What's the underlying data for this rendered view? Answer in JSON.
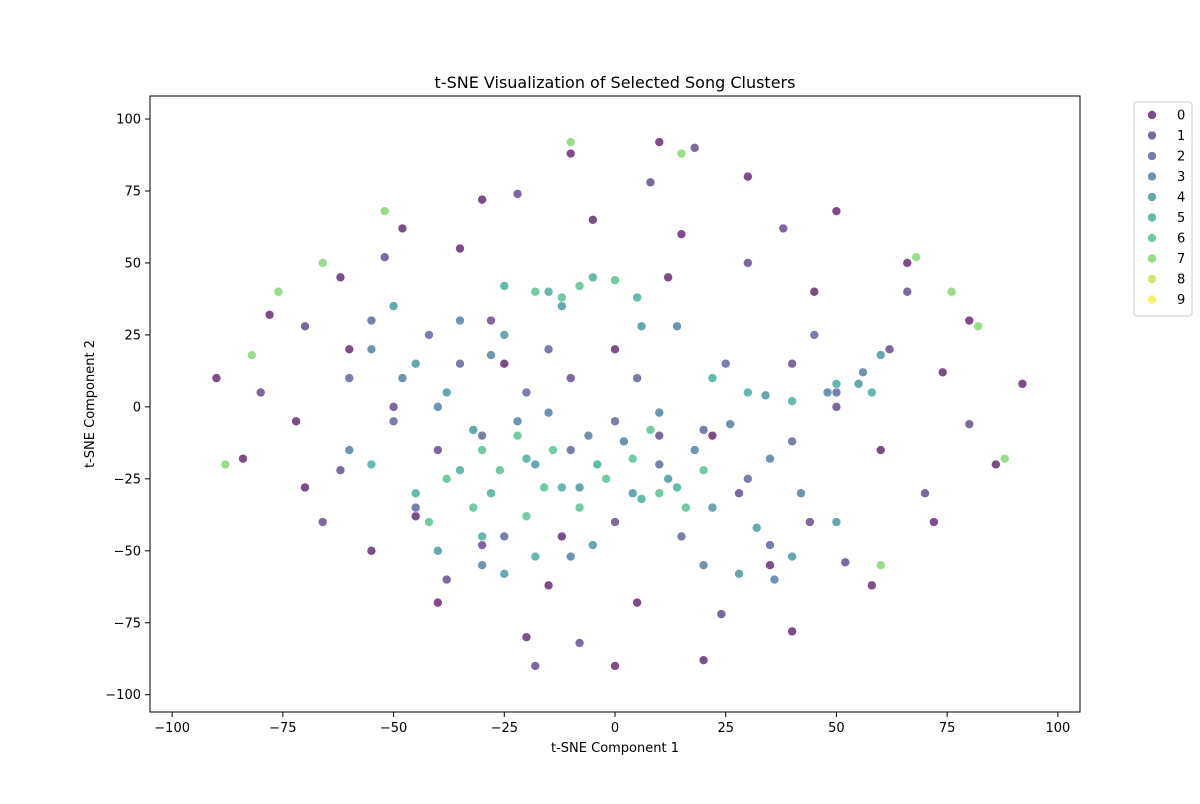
{
  "chart_data": {
    "type": "scatter",
    "title": "t-SNE Visualization of Selected Song Clusters",
    "xlabel": "t-SNE Component 1",
    "ylabel": "t-SNE Component 2",
    "xlim": [
      -105,
      105
    ],
    "ylim": [
      -106,
      108
    ],
    "xticks": [
      -100,
      -75,
      -50,
      -25,
      0,
      25,
      50,
      75,
      100
    ],
    "yticks": [
      -100,
      -75,
      -50,
      -25,
      0,
      25,
      50,
      75,
      100
    ],
    "grid": false,
    "legend_position": "outside-top-right",
    "legend": [
      {
        "label": "0",
        "color": "#440154"
      },
      {
        "label": "1",
        "color": "#482878"
      },
      {
        "label": "2",
        "color": "#3e4989"
      },
      {
        "label": "3",
        "color": "#31688e"
      },
      {
        "label": "4",
        "color": "#26828e"
      },
      {
        "label": "5",
        "color": "#1f9e89"
      },
      {
        "label": "6",
        "color": "#35b779"
      },
      {
        "label": "7",
        "color": "#6ece58"
      },
      {
        "label": "8",
        "color": "#b5de2b"
      },
      {
        "label": "9",
        "color": "#fde725"
      }
    ],
    "marker_alpha": 0.7,
    "marker_edge_color": "#ffffff",
    "series": [
      {
        "name": "0",
        "color": "#440154",
        "points": [
          [
            -90,
            10
          ],
          [
            -84,
            -18
          ],
          [
            -78,
            32
          ],
          [
            -70,
            -28
          ],
          [
            -62,
            45
          ],
          [
            -55,
            -50
          ],
          [
            -48,
            62
          ],
          [
            -40,
            -68
          ],
          [
            -30,
            72
          ],
          [
            -20,
            -80
          ],
          [
            -10,
            88
          ],
          [
            0,
            -90
          ],
          [
            10,
            92
          ],
          [
            20,
            -88
          ],
          [
            30,
            80
          ],
          [
            40,
            -78
          ],
          [
            50,
            68
          ],
          [
            58,
            -62
          ],
          [
            66,
            50
          ],
          [
            72,
            -40
          ],
          [
            80,
            30
          ],
          [
            86,
            -20
          ],
          [
            92,
            8
          ],
          [
            -35,
            55
          ],
          [
            35,
            -55
          ],
          [
            -60,
            20
          ],
          [
            60,
            -15
          ],
          [
            -5,
            65
          ],
          [
            5,
            -68
          ],
          [
            45,
            40
          ],
          [
            -45,
            -38
          ],
          [
            -72,
            -5
          ],
          [
            74,
            12
          ],
          [
            -15,
            -62
          ],
          [
            15,
            60
          ],
          [
            0,
            20
          ],
          [
            22,
            -10
          ],
          [
            -25,
            15
          ],
          [
            -12,
            -45
          ],
          [
            12,
            45
          ]
        ]
      },
      {
        "name": "1",
        "color": "#482878",
        "points": [
          [
            -80,
            5
          ],
          [
            -66,
            -40
          ],
          [
            -52,
            52
          ],
          [
            -38,
            -60
          ],
          [
            -22,
            74
          ],
          [
            -8,
            -82
          ],
          [
            8,
            78
          ],
          [
            24,
            -72
          ],
          [
            38,
            62
          ],
          [
            52,
            -54
          ],
          [
            66,
            40
          ],
          [
            80,
            -6
          ],
          [
            -28,
            30
          ],
          [
            28,
            -30
          ],
          [
            0,
            -40
          ],
          [
            40,
            15
          ],
          [
            -40,
            -15
          ],
          [
            62,
            20
          ],
          [
            -62,
            -22
          ],
          [
            18,
            90
          ],
          [
            -18,
            -90
          ],
          [
            70,
            -30
          ],
          [
            -70,
            28
          ],
          [
            50,
            0
          ],
          [
            -50,
            0
          ],
          [
            30,
            50
          ],
          [
            -30,
            -48
          ],
          [
            10,
            -10
          ],
          [
            -10,
            10
          ],
          [
            44,
            -40
          ]
        ]
      },
      {
        "name": "2",
        "color": "#3e4989",
        "points": [
          [
            -60,
            10
          ],
          [
            -50,
            -5
          ],
          [
            -42,
            25
          ],
          [
            -30,
            -10
          ],
          [
            -20,
            5
          ],
          [
            -10,
            -15
          ],
          [
            0,
            -5
          ],
          [
            10,
            -20
          ],
          [
            20,
            -8
          ],
          [
            30,
            -25
          ],
          [
            40,
            -12
          ],
          [
            50,
            5
          ],
          [
            -55,
            30
          ],
          [
            -35,
            15
          ],
          [
            -15,
            20
          ],
          [
            5,
            10
          ],
          [
            25,
            15
          ],
          [
            45,
            25
          ],
          [
            -45,
            -35
          ],
          [
            -25,
            -45
          ],
          [
            15,
            -45
          ],
          [
            35,
            -48
          ]
        ]
      },
      {
        "name": "3",
        "color": "#31688e",
        "points": [
          [
            -55,
            20
          ],
          [
            -48,
            10
          ],
          [
            -40,
            0
          ],
          [
            -35,
            30
          ],
          [
            -28,
            18
          ],
          [
            -22,
            -5
          ],
          [
            -15,
            -2
          ],
          [
            -6,
            -10
          ],
          [
            2,
            -12
          ],
          [
            10,
            -2
          ],
          [
            18,
            -15
          ],
          [
            26,
            -6
          ],
          [
            35,
            -18
          ],
          [
            42,
            -30
          ],
          [
            48,
            5
          ],
          [
            -30,
            -55
          ],
          [
            20,
            -55
          ],
          [
            36,
            -60
          ],
          [
            -10,
            -52
          ],
          [
            56,
            12
          ],
          [
            -60,
            -15
          ],
          [
            14,
            28
          ]
        ]
      },
      {
        "name": "4",
        "color": "#26828e",
        "points": [
          [
            -45,
            15
          ],
          [
            -38,
            5
          ],
          [
            -32,
            -8
          ],
          [
            -25,
            25
          ],
          [
            -18,
            -20
          ],
          [
            -8,
            -28
          ],
          [
            4,
            -30
          ],
          [
            12,
            -25
          ],
          [
            22,
            -35
          ],
          [
            32,
            -42
          ],
          [
            40,
            -52
          ],
          [
            -40,
            -50
          ],
          [
            -25,
            -58
          ],
          [
            -5,
            -48
          ],
          [
            28,
            -58
          ],
          [
            50,
            -40
          ],
          [
            55,
            8
          ],
          [
            60,
            18
          ],
          [
            -50,
            35
          ],
          [
            -12,
            35
          ],
          [
            6,
            28
          ],
          [
            34,
            4
          ]
        ]
      },
      {
        "name": "5",
        "color": "#1f9e89",
        "points": [
          [
            -35,
            -22
          ],
          [
            -28,
            -30
          ],
          [
            -20,
            -18
          ],
          [
            -12,
            -28
          ],
          [
            -4,
            -20
          ],
          [
            6,
            -32
          ],
          [
            14,
            -28
          ],
          [
            -30,
            -45
          ],
          [
            -18,
            -52
          ],
          [
            -45,
            -30
          ],
          [
            -15,
            40
          ],
          [
            -5,
            45
          ],
          [
            5,
            38
          ],
          [
            -25,
            42
          ],
          [
            30,
            5
          ],
          [
            40,
            2
          ],
          [
            50,
            8
          ],
          [
            58,
            5
          ],
          [
            -55,
            -20
          ],
          [
            22,
            10
          ]
        ]
      },
      {
        "name": "6",
        "color": "#35b779",
        "points": [
          [
            -38,
            -25
          ],
          [
            -32,
            -35
          ],
          [
            -26,
            -22
          ],
          [
            -20,
            -38
          ],
          [
            -14,
            -15
          ],
          [
            -8,
            -35
          ],
          [
            -2,
            -25
          ],
          [
            4,
            -18
          ],
          [
            10,
            -30
          ],
          [
            16,
            -35
          ],
          [
            -22,
            -10
          ],
          [
            -18,
            40
          ],
          [
            -8,
            42
          ],
          [
            0,
            44
          ],
          [
            -12,
            38
          ],
          [
            -30,
            -15
          ],
          [
            8,
            -8
          ],
          [
            -42,
            -40
          ],
          [
            20,
            -22
          ],
          [
            -16,
            -28
          ]
        ]
      },
      {
        "name": "7",
        "color": "#6ece58",
        "points": [
          [
            -82,
            18
          ],
          [
            -76,
            40
          ],
          [
            -66,
            50
          ],
          [
            -52,
            68
          ],
          [
            68,
            52
          ],
          [
            76,
            40
          ],
          [
            82,
            28
          ],
          [
            -88,
            -20
          ],
          [
            88,
            -18
          ],
          [
            -10,
            92
          ],
          [
            15,
            88
          ],
          [
            60,
            -55
          ]
        ]
      }
    ]
  }
}
